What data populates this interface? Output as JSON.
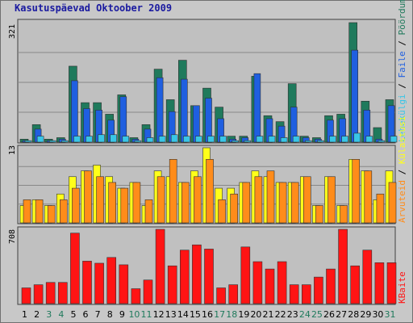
{
  "title": "Kasutuspäevad Oktoober 2009",
  "colors": {
    "background": "#c8c8c8",
    "frame": "#707070",
    "hits": "#1f7a5c",
    "files": "#1f5fe0",
    "pages": "#39c6e6",
    "visits": "#ffff1a",
    "sites": "#ff8c1a",
    "kbytes": "#ff1414",
    "gridline": "#888888",
    "day_weekday": "#000000",
    "day_weekend": "#1f7a5c"
  },
  "legend": {
    "top_group": [
      {
        "label": "Pöördumisi",
        "color": "#1f7a5c"
      },
      {
        "label": "Faile",
        "color": "#1f5fe0"
      },
      {
        "label": "Lehekülgi",
        "color": "#39c6e6"
      }
    ],
    "mid_group": [
      {
        "label": "Külastusi",
        "color": "#ffff1a"
      },
      {
        "label": "Arvuteid",
        "color": "#ff8c1a"
      }
    ],
    "bottom_group": [
      {
        "label": "KBaite",
        "color": "#ff1414"
      }
    ],
    "separator": " / "
  },
  "chart_data": {
    "type": "bar",
    "categories": [
      "1",
      "2",
      "3",
      "4",
      "5",
      "6",
      "7",
      "8",
      "9",
      "10",
      "11",
      "12",
      "13",
      "14",
      "15",
      "16",
      "17",
      "18",
      "19",
      "20",
      "21",
      "22",
      "23",
      "24",
      "25",
      "26",
      "27",
      "28",
      "29",
      "30",
      "31"
    ],
    "weekend_days": [
      "3",
      "4",
      "10",
      "11",
      "17",
      "18",
      "24",
      "25",
      "31"
    ],
    "panels": [
      {
        "max_label": "321",
        "ylim": [
          0,
          321
        ],
        "grid": true,
        "series": [
          {
            "name": "Pöördumisi",
            "values": [
              8,
              47,
              8,
              12,
              204,
              106,
              106,
              75,
              127,
              12,
              47,
              196,
              114,
              220,
              98,
              145,
              94,
              16,
              16,
              177,
              71,
              55,
              157,
              16,
              12,
              71,
              75,
              321,
              110,
              39,
              114
            ]
          },
          {
            "name": "Faile",
            "values": [
              4,
              35,
              4,
              8,
              165,
              90,
              86,
              59,
              122,
              8,
              35,
              173,
              82,
              169,
              98,
              118,
              63,
              8,
              12,
              184,
              63,
              43,
              94,
              12,
              8,
              59,
              63,
              247,
              86,
              8,
              98
            ]
          },
          {
            "name": "Lehekülgi",
            "values": [
              4,
              16,
              4,
              4,
              16,
              16,
              20,
              20,
              16,
              4,
              12,
              16,
              20,
              16,
              16,
              16,
              16,
              4,
              4,
              16,
              16,
              12,
              16,
              4,
              4,
              16,
              16,
              24,
              16,
              4,
              16
            ]
          }
        ]
      },
      {
        "max_label": "13",
        "ylim": [
          0,
          13
        ],
        "grid": true,
        "series": [
          {
            "name": "Külastusi",
            "values": [
              3,
              4,
              3,
              5,
              8,
              9,
              10,
              8,
              6,
              7,
              3,
              9,
              8,
              7,
              9,
              13,
              6,
              6,
              7,
              9,
              8,
              7,
              7,
              8,
              3,
              8,
              3,
              11,
              9,
              4,
              9
            ]
          },
          {
            "name": "Arvuteid",
            "values": [
              4,
              4,
              3,
              4,
              6,
              9,
              8,
              7,
              6,
              7,
              4,
              8,
              11,
              7,
              8,
              11,
              4,
              5,
              7,
              8,
              9,
              7,
              7,
              8,
              3,
              8,
              3,
              11,
              9,
              5,
              7
            ]
          }
        ]
      },
      {
        "max_label": "708",
        "ylim": [
          0,
          708
        ],
        "grid": false,
        "series": [
          {
            "name": "KBaite",
            "values": [
              150,
              180,
              202,
              202,
              672,
              405,
              385,
              440,
              370,
              142,
              225,
              708,
              360,
              510,
              560,
              520,
              150,
              180,
              540,
              400,
              330,
              400,
              180,
              180,
              253,
              330,
              708,
              360,
              510,
              390,
              390
            ]
          }
        ]
      }
    ]
  }
}
